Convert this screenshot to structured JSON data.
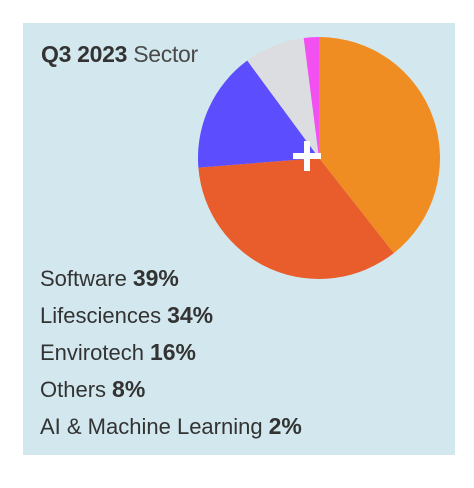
{
  "title": {
    "bold": "Q3 2023",
    "light": "Sector"
  },
  "chart_data": {
    "type": "pie",
    "title": "Q3 2023 Sector",
    "slices": [
      {
        "label": "Software",
        "value": 39,
        "display": "39%",
        "color": "#ef8d22"
      },
      {
        "label": "Lifesciences",
        "value": 34,
        "display": "34%",
        "color": "#e95c2c"
      },
      {
        "label": "Envirotech",
        "value": 16,
        "display": "16%",
        "color": "#5c4dff"
      },
      {
        "label": "Others",
        "value": 8,
        "display": "8%",
        "color": "#dcdde0"
      },
      {
        "label": "AI & Machine Learning",
        "value": 2,
        "display": "2%",
        "color": "#f250f0"
      }
    ],
    "start": "top",
    "direction": "clockwise",
    "legend": "bottom-left"
  },
  "colors": {
    "background": "#d3e8ee",
    "text": "#333333"
  }
}
